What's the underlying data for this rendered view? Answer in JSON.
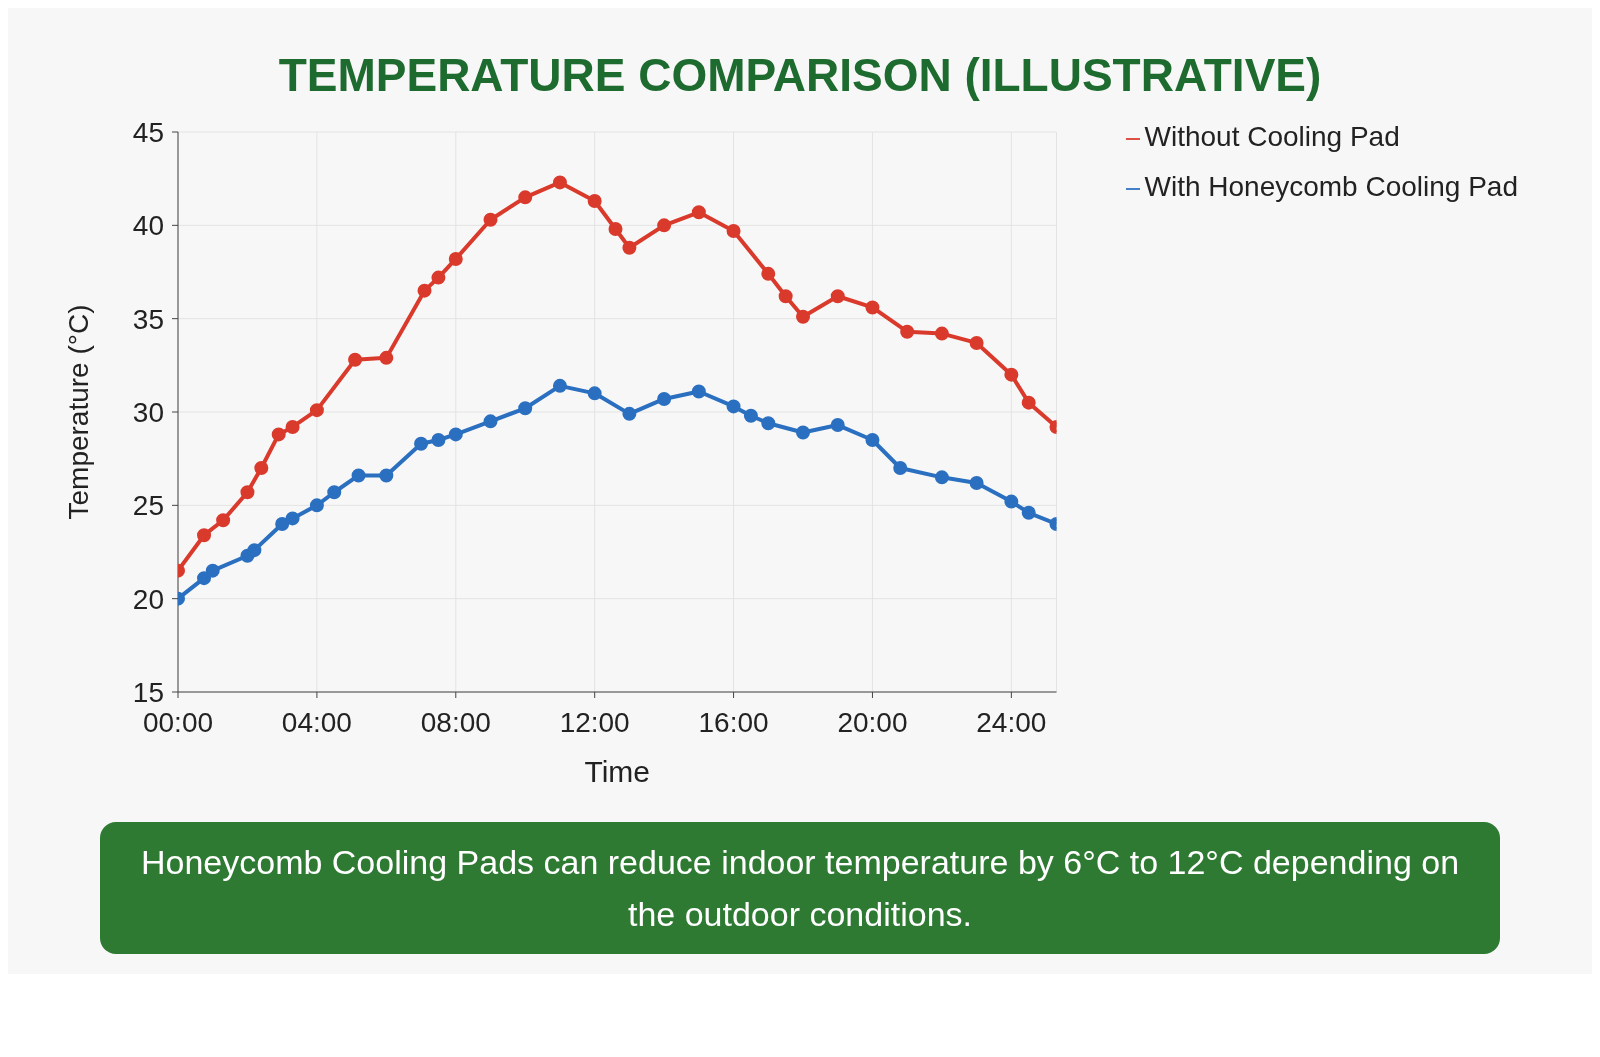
{
  "chart_data": {
    "type": "line",
    "title": "TEMPERATURE COMPARISON (ILLUSTRATIVE)",
    "xlabel": "Time",
    "ylabel": "Temperature (°C)",
    "series": [
      {
        "name": "Without Cooling Pad",
        "color": "#d93a2b",
        "x": [
          0,
          0.75,
          1.3,
          2,
          2.4,
          2.9,
          3.3,
          4,
          5.1,
          6,
          7.1,
          7.5,
          8,
          9,
          10,
          11,
          12,
          12.6,
          13,
          14,
          15,
          16,
          17,
          17.5,
          18,
          19,
          20,
          21,
          22,
          23,
          24,
          24.5,
          25.3
        ],
        "values": [
          21.5,
          23.4,
          24.2,
          25.7,
          27,
          28.8,
          29.2,
          30.1,
          32.8,
          32.9,
          36.5,
          37.2,
          38.2,
          40.3,
          41.5,
          42.3,
          41.3,
          39.8,
          38.8,
          40,
          40.7,
          39.7,
          37.4,
          36.2,
          35.1,
          36.2,
          35.6,
          34.3,
          34.2,
          33.7,
          32,
          30.5,
          29.2
        ]
      },
      {
        "name": "With Honeycomb Cooling Pad",
        "color": "#2a6fc0",
        "x": [
          0,
          0.75,
          1,
          2,
          2.2,
          3,
          3.3,
          4,
          4.5,
          5.2,
          6,
          7,
          7.5,
          8,
          9,
          10,
          11,
          12,
          13,
          14,
          15,
          16,
          16.5,
          17,
          18,
          19,
          20,
          20.8,
          22,
          23,
          24,
          24.5,
          25.3
        ],
        "values": [
          20,
          21.1,
          21.5,
          22.3,
          22.6,
          24,
          24.3,
          25,
          25.7,
          26.6,
          26.6,
          28.3,
          28.5,
          28.8,
          29.5,
          30.2,
          31.4,
          31,
          29.9,
          30.7,
          31.1,
          30.3,
          29.8,
          29.4,
          28.9,
          29.3,
          28.5,
          27,
          26.5,
          26.2,
          25.2,
          24.6,
          24
        ]
      }
    ],
    "xlim": [
      0,
      25.3
    ],
    "xticks": [
      {
        "value": 0,
        "label": "00:00"
      },
      {
        "value": 4,
        "label": "04:00"
      },
      {
        "value": 8,
        "label": "08:00"
      },
      {
        "value": 12,
        "label": "12:00"
      },
      {
        "value": 16,
        "label": "16:00"
      },
      {
        "value": 20,
        "label": "20:00"
      },
      {
        "value": 24,
        "label": "24:00"
      }
    ],
    "ylim": [
      15,
      45
    ],
    "yticks": [
      15,
      20,
      25,
      30,
      35,
      40,
      45
    ],
    "grid": true,
    "legend": "top right",
    "marker": "circle",
    "line_style": "solid",
    "annotations": [
      "Honeycomb Cooling Pads can reduce indoor temperature by 6°C to 12°C depending on the outdoor conditions."
    ]
  }
}
